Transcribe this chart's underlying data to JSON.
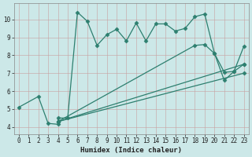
{
  "xlabel": "Humidex (Indice chaleur)",
  "line1_x": [
    0,
    2,
    3,
    4,
    4,
    5,
    6,
    7,
    8,
    9,
    10,
    11,
    12,
    13,
    14,
    15,
    16,
    17,
    18,
    19,
    20,
    21,
    22,
    23
  ],
  "line1_y": [
    5.1,
    5.7,
    4.2,
    4.15,
    4.5,
    4.5,
    10.4,
    9.9,
    8.55,
    9.15,
    9.45,
    8.8,
    9.8,
    8.8,
    9.75,
    9.75,
    9.35,
    9.5,
    10.15,
    10.3,
    8.1,
    7.05,
    7.1,
    7.5
  ],
  "line2_x": [
    4,
    18,
    19,
    20,
    21,
    22,
    23
  ],
  "line2_y": [
    4.3,
    8.55,
    8.6,
    8.1,
    6.6,
    7.1,
    8.5
  ],
  "line3_x": [
    4,
    23
  ],
  "line3_y": [
    4.3,
    7.5
  ],
  "line4_x": [
    4,
    23
  ],
  "line4_y": [
    4.3,
    7.0
  ],
  "color": "#2d7f6f",
  "bg_color": "#cce8e8",
  "grid_color": "#b8d0d0",
  "xlim": [
    -0.5,
    23.5
  ],
  "ylim": [
    3.6,
    10.9
  ],
  "yticks": [
    4,
    5,
    6,
    7,
    8,
    9,
    10
  ],
  "xticks": [
    0,
    1,
    2,
    3,
    4,
    5,
    6,
    7,
    8,
    9,
    10,
    11,
    12,
    13,
    14,
    15,
    16,
    17,
    18,
    19,
    20,
    21,
    22,
    23
  ]
}
